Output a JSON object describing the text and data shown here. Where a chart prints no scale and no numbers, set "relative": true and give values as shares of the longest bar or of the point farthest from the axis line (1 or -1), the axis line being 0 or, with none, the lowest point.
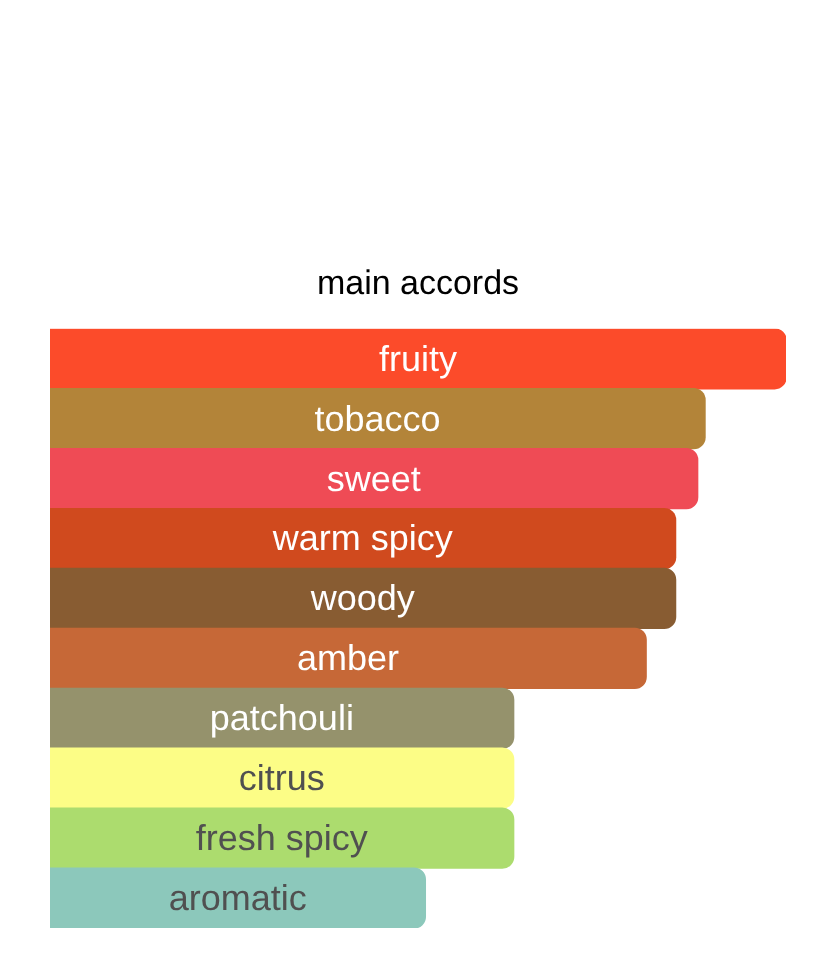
{
  "chart_data": {
    "type": "bar",
    "orientation": "horizontal",
    "relative": true,
    "title": "main accords",
    "categories": [
      "fruity",
      "tobacco",
      "sweet",
      "warm spicy",
      "woody",
      "amber",
      "patchouli",
      "citrus",
      "fresh spicy",
      "aromatic"
    ],
    "values": [
      1,
      0.89,
      0.88,
      0.85,
      0.85,
      0.81,
      0.63,
      0.63,
      0.63,
      0.51
    ],
    "colors": [
      "#fc4b2a",
      "#b38439",
      "#ef4b55",
      "#d04a1e",
      "#885c32",
      "#c66837",
      "#95926c",
      "#fcfd86",
      "#acdc6e",
      "#8cc8bb"
    ]
  }
}
